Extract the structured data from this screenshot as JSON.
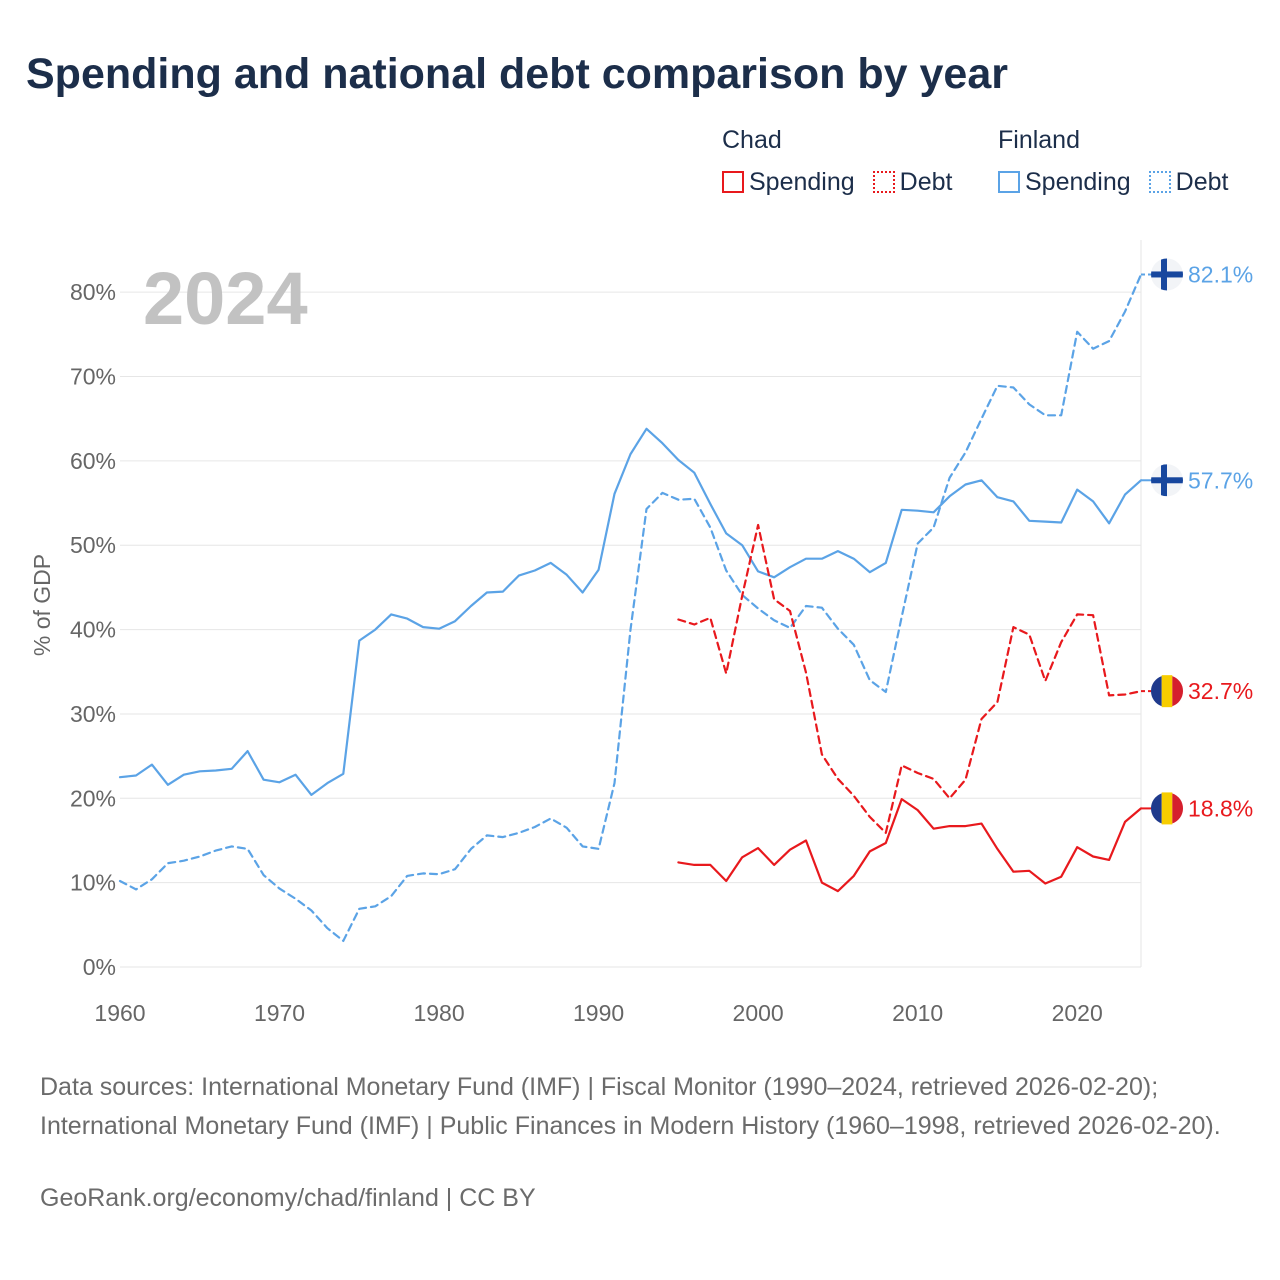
{
  "chart_data": {
    "type": "line",
    "title": "Spending and national debt comparison by year",
    "year_label": "2024",
    "ylabel": "% of GDP",
    "xlabel": "",
    "xlim": [
      1960,
      2024
    ],
    "ylim": [
      0,
      85
    ],
    "x_ticks": [
      1960,
      1970,
      1980,
      1990,
      2000,
      2010,
      2020
    ],
    "y_ticks": [
      0,
      10,
      20,
      30,
      40,
      50,
      60,
      70,
      80
    ],
    "y_tick_labels": [
      "0%",
      "10%",
      "20%",
      "30%",
      "40%",
      "50%",
      "60%",
      "70%",
      "80%"
    ],
    "grid": true,
    "legend_position": "top-right",
    "series": [
      {
        "name": "Spending",
        "country": "Finland",
        "color": "#5ba3e6",
        "style": "solid",
        "flag": "Finland",
        "end_label": "57.7%",
        "start_year": 1960,
        "values": [
          22.5,
          22.7,
          24.0,
          21.6,
          22.8,
          23.2,
          23.3,
          23.5,
          25.6,
          22.2,
          21.9,
          22.8,
          20.4,
          21.8,
          22.9,
          38.7,
          40.0,
          41.8,
          41.3,
          40.3,
          40.1,
          41.0,
          42.8,
          44.4,
          44.5,
          46.4,
          47.0,
          47.9,
          46.5,
          44.4,
          47.1,
          56.1,
          60.8,
          63.8,
          62.1,
          60.1,
          58.6,
          54.9,
          51.4,
          50.0,
          46.9,
          46.2,
          47.4,
          48.4,
          48.4,
          49.3,
          48.4,
          46.8,
          47.9,
          54.2,
          54.1,
          53.9,
          55.8,
          57.2,
          57.7,
          55.7,
          55.2,
          52.9,
          52.8,
          52.7,
          56.6,
          55.2,
          52.6,
          56.0,
          57.7
        ]
      },
      {
        "name": "Debt",
        "country": "Finland",
        "color": "#5ba3e6",
        "style": "dashed",
        "flag": "Finland",
        "end_label": "82.1%",
        "start_year": 1960,
        "values": [
          10.2,
          9.2,
          10.4,
          12.3,
          12.6,
          13.1,
          13.8,
          14.3,
          14.0,
          10.9,
          9.3,
          8.1,
          6.7,
          4.6,
          3.1,
          6.9,
          7.2,
          8.4,
          10.8,
          11.1,
          11.0,
          11.6,
          14.0,
          15.6,
          15.4,
          15.9,
          16.6,
          17.6,
          16.5,
          14.3,
          14.0,
          21.8,
          40.0,
          54.3,
          56.2,
          55.4,
          55.5,
          52.1,
          47.0,
          44.1,
          42.5,
          41.1,
          40.2,
          42.8,
          42.6,
          40.1,
          38.2,
          34.0,
          32.6,
          41.5,
          50.2,
          52.1,
          58.0,
          61.0,
          65.0,
          68.9,
          68.7,
          66.7,
          65.4,
          65.4,
          75.3,
          73.3,
          74.2,
          77.7,
          82.1
        ]
      },
      {
        "name": "Spending",
        "country": "Chad",
        "color": "#e8191d",
        "style": "solid",
        "flag": "Chad",
        "end_label": "18.8%",
        "start_year": 1995,
        "values": [
          12.4,
          12.1,
          12.1,
          10.2,
          13.0,
          14.1,
          12.1,
          13.9,
          15.0,
          10.0,
          9.0,
          10.8,
          13.7,
          14.7,
          19.9,
          18.6,
          16.4,
          16.7,
          16.7,
          17.0,
          14.0,
          11.3,
          11.4,
          9.9,
          10.7,
          14.2,
          13.1,
          12.7,
          17.2,
          18.8
        ]
      },
      {
        "name": "Debt",
        "country": "Chad",
        "color": "#e8191d",
        "style": "dashed",
        "flag": "Chad",
        "end_label": "32.7%",
        "start_year": 1995,
        "values": [
          41.2,
          40.6,
          41.4,
          34.8,
          44.0,
          52.4,
          43.6,
          42.2,
          34.9,
          25.2,
          22.3,
          20.3,
          17.8,
          15.9,
          23.9,
          23.0,
          22.3,
          20.0,
          22.2,
          29.4,
          31.4,
          40.3,
          39.4,
          33.9,
          38.5,
          41.8,
          41.7,
          32.2,
          32.3,
          32.7
        ]
      }
    ]
  },
  "legend": {
    "groups": [
      {
        "country": "Chad",
        "items": [
          {
            "label": "Spending"
          },
          {
            "label": "Debt"
          }
        ]
      },
      {
        "country": "Finland",
        "items": [
          {
            "label": "Spending"
          },
          {
            "label": "Debt"
          }
        ]
      }
    ]
  },
  "colors": {
    "chad": "#e8191d",
    "finland": "#5ba3e6",
    "title": "#1c2e4a",
    "grid": "#e6e6e6"
  },
  "footer": {
    "source": "Data sources: International Monetary Fund (IMF) | Fiscal Monitor (1990–2024, retrieved 2026-02-20); International Monetary Fund (IMF) | Public Finances in Modern History (1960–1998, retrieved 2026-02-20).",
    "credit": "GeoRank.org/economy/chad/finland | CC BY"
  }
}
